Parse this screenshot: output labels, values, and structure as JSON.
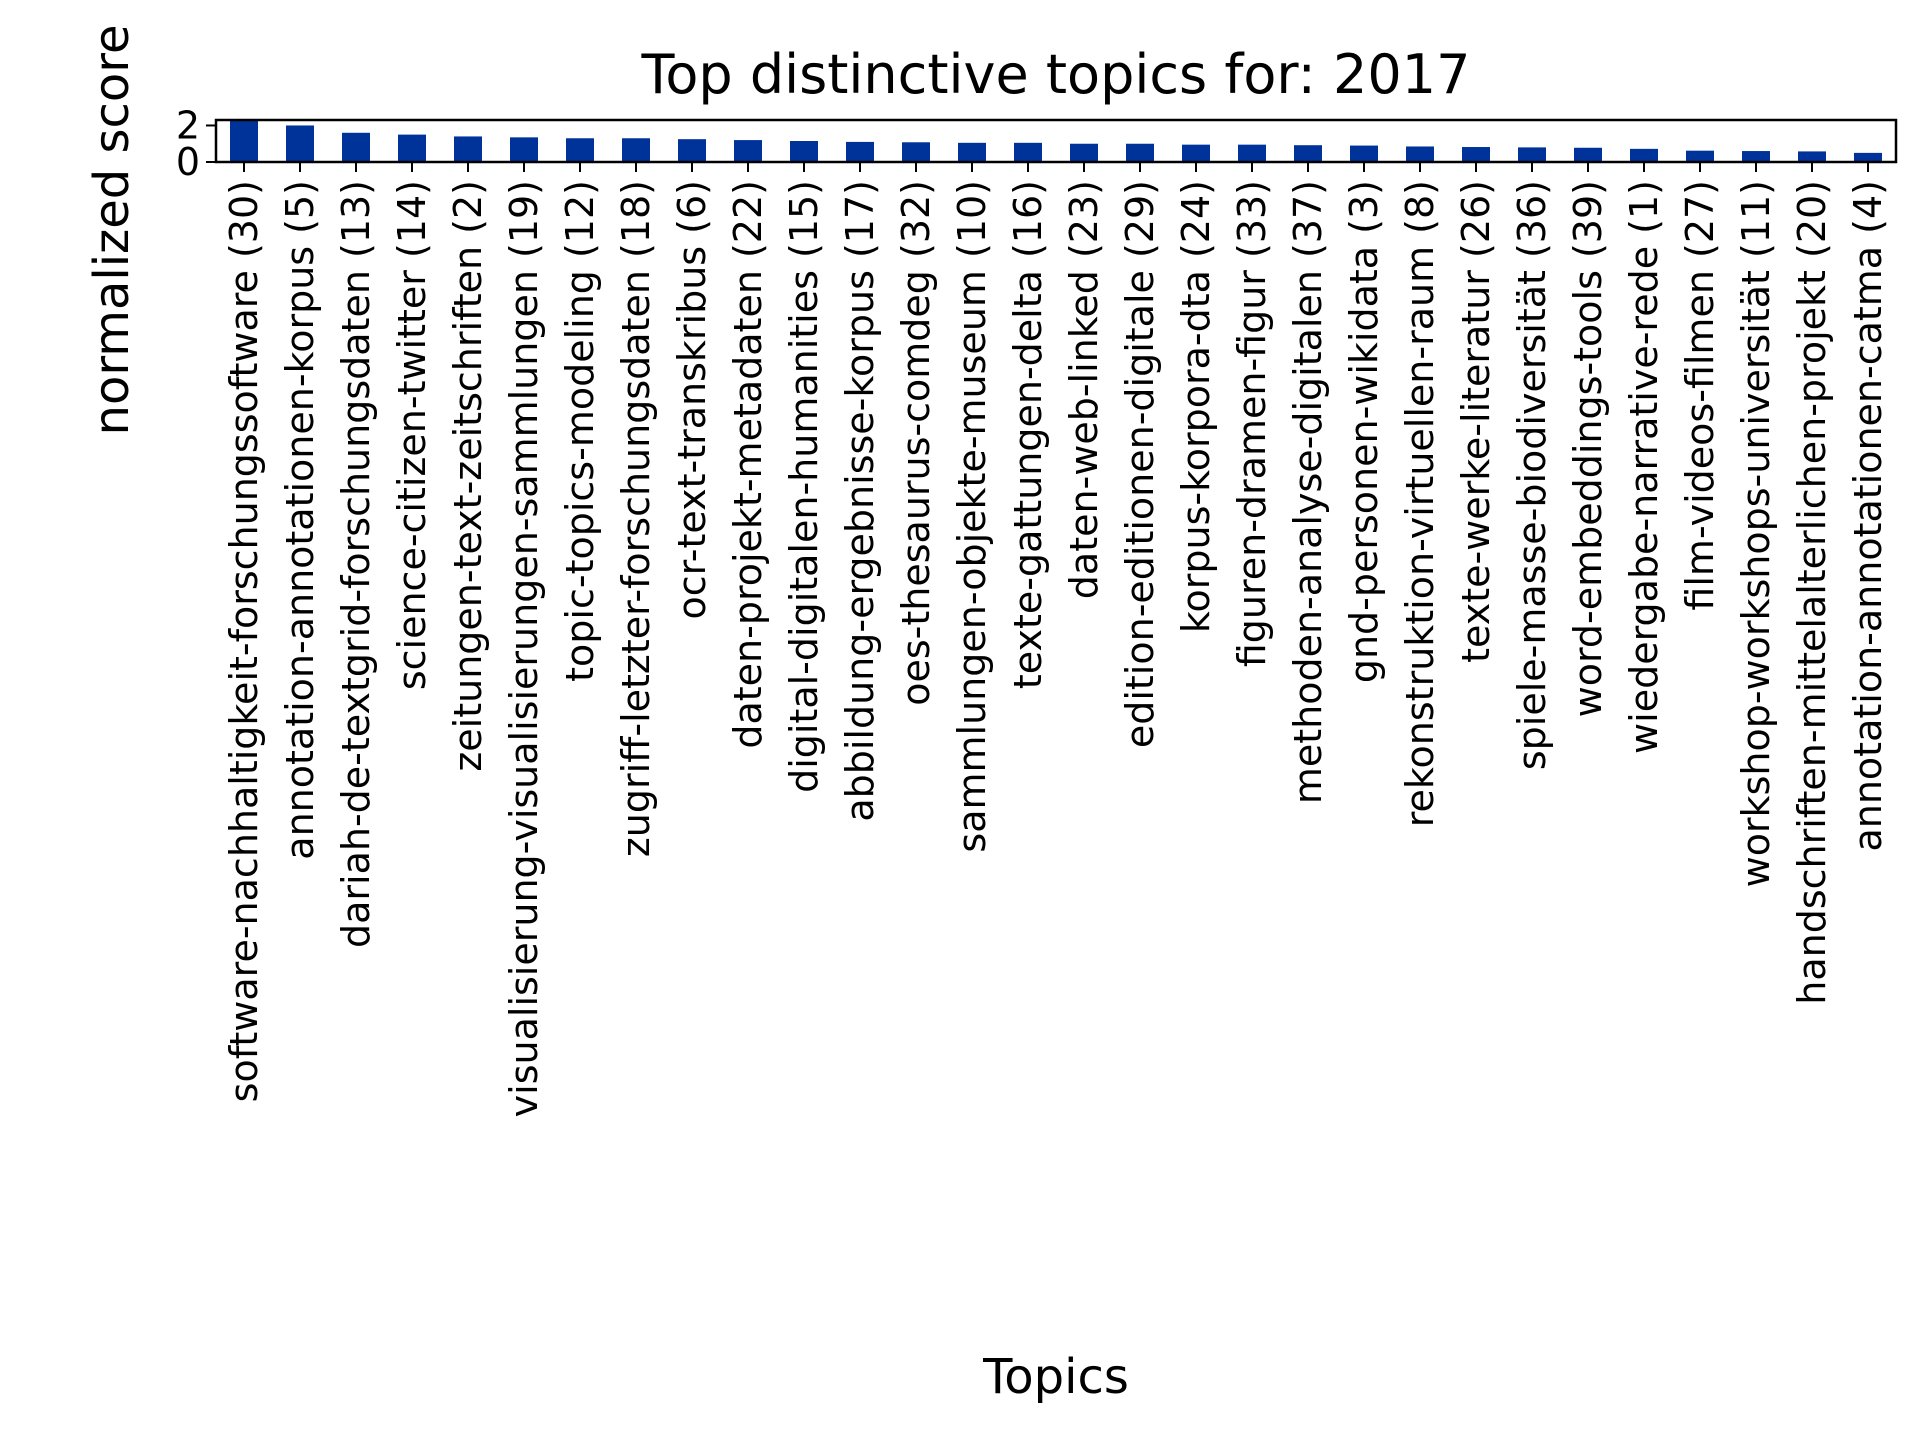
{
  "colors": {
    "bar": "#003399",
    "axis": "#000000",
    "background": "#ffffff"
  },
  "chart_data": {
    "type": "bar",
    "title": "Top distinctive topics for: 2017",
    "xlabel": "Topics",
    "ylabel": "normalized score",
    "ylim": [
      0,
      2.3
    ],
    "yticks": [
      0,
      2
    ],
    "grid": false,
    "legend": "none",
    "categories": [
      "software-nachhaltigkeit-forschungssoftware (30)",
      "annotation-annotationen-korpus (5)",
      "dariah-de-textgrid-forschungsdaten (13)",
      "science-citizen-twitter (14)",
      "zeitungen-text-zeitschriften (2)",
      "visualisierung-visualisierungen-sammlungen (19)",
      "topic-topics-modeling (12)",
      "zugriff-letzter-forschungsdaten (18)",
      "ocr-text-transkribus (6)",
      "daten-projekt-metadaten (22)",
      "digital-digitalen-humanities (15)",
      "abbildung-ergebnisse-korpus (17)",
      "oes-thesaurus-comdeg (32)",
      "sammlungen-objekte-museum (10)",
      "texte-gattungen-delta (16)",
      "daten-web-linked (23)",
      "edition-editionen-digitale (29)",
      "korpus-korpora-dta (24)",
      "figuren-dramen-figur (33)",
      "methoden-analyse-digitalen (37)",
      "gnd-personen-wikidata (3)",
      "rekonstruktion-virtuellen-raum (8)",
      "texte-werke-literatur (26)",
      "spiele-masse-biodiversität (36)",
      "word-embeddings-tools (39)",
      "wiedergabe-narrative-rede (1)",
      "film-videos-filmen (27)",
      "workshop-workshops-universität (11)",
      "handschriften-mittelalterlichen-projekt (20)",
      "annotation-annotationen-catma (4)"
    ],
    "values": [
      2.3,
      2.0,
      1.6,
      1.5,
      1.4,
      1.35,
      1.3,
      1.3,
      1.25,
      1.2,
      1.15,
      1.1,
      1.08,
      1.05,
      1.05,
      1.0,
      1.0,
      0.95,
      0.95,
      0.92,
      0.9,
      0.85,
      0.82,
      0.8,
      0.78,
      0.72,
      0.62,
      0.6,
      0.58,
      0.5
    ]
  }
}
